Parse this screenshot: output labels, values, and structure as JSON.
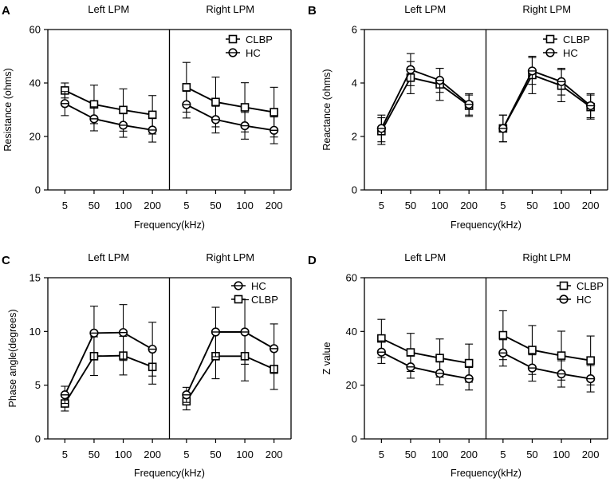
{
  "figure": {
    "type": "multi-panel line chart with error bars",
    "marker_color": "#000000"
  },
  "chart_data": [
    {
      "panel": "A",
      "type": "line",
      "ylabel": "Resistance (ohms)",
      "xlabel": "Frequency(kHz)",
      "ylim": [
        0,
        60
      ],
      "yticks": [
        0,
        20,
        40,
        60
      ],
      "categories": [
        "5",
        "50",
        "100",
        "200"
      ],
      "legend": {
        "position": "top-right",
        "order": [
          "CLBP",
          "HC"
        ]
      },
      "groups": [
        {
          "title": "Left LPM",
          "series": [
            {
              "name": "CLBP",
              "marker": "square",
              "values": [
                37.2,
                32.0,
                29.9,
                28.1
              ],
              "errors": [
                2.8,
                7.2,
                7.9,
                7.2
              ]
            },
            {
              "name": "HC",
              "marker": "circle",
              "values": [
                32.3,
                26.6,
                24.2,
                22.4
              ],
              "errors": [
                4.5,
                4.5,
                4.5,
                4.5
              ]
            }
          ]
        },
        {
          "title": "Right LPM",
          "series": [
            {
              "name": "CLBP",
              "marker": "square",
              "values": [
                38.4,
                32.9,
                30.9,
                29.1
              ],
              "errors": [
                9.3,
                9.3,
                9.2,
                9.3
              ]
            },
            {
              "name": "HC",
              "marker": "circle",
              "values": [
                31.9,
                26.3,
                24.0,
                22.3
              ],
              "errors": [
                5.0,
                5.0,
                5.0,
                5.0
              ]
            }
          ]
        }
      ]
    },
    {
      "panel": "B",
      "type": "line",
      "ylabel": "Reactance (ohms)",
      "xlabel": "Frequency(kHz)",
      "ylim": [
        0,
        6
      ],
      "yticks": [
        0,
        2,
        4,
        6
      ],
      "categories": [
        "5",
        "50",
        "100",
        "200"
      ],
      "legend": {
        "position": "top-right",
        "order": [
          "CLBP",
          "HC"
        ]
      },
      "groups": [
        {
          "title": "Left LPM",
          "series": [
            {
              "name": "CLBP",
              "marker": "square",
              "values": [
                2.2,
                4.2,
                3.95,
                3.15
              ],
              "errors": [
                0.5,
                0.6,
                0.6,
                0.4
              ]
            },
            {
              "name": "HC",
              "marker": "circle",
              "values": [
                2.3,
                4.5,
                4.1,
                3.2
              ],
              "errors": [
                0.5,
                0.6,
                0.45,
                0.4
              ]
            }
          ]
        },
        {
          "title": "Right LPM",
          "series": [
            {
              "name": "CLBP",
              "marker": "square",
              "values": [
                2.3,
                4.3,
                3.9,
                3.1
              ],
              "errors": [
                0.5,
                0.7,
                0.6,
                0.45
              ]
            },
            {
              "name": "HC",
              "marker": "circle",
              "values": [
                2.3,
                4.45,
                4.05,
                3.15
              ],
              "errors": [
                0.5,
                0.5,
                0.5,
                0.45
              ]
            }
          ]
        }
      ]
    },
    {
      "panel": "C",
      "type": "line",
      "ylabel": "Phase angle(degrees)",
      "xlabel": "Frequency(kHz)",
      "ylim": [
        0,
        15
      ],
      "yticks": [
        0,
        5,
        10,
        15
      ],
      "categories": [
        "5",
        "50",
        "100",
        "200"
      ],
      "legend": {
        "position": "top-right",
        "order": [
          "HC",
          "CLBP"
        ]
      },
      "groups": [
        {
          "title": "Left LPM",
          "series": [
            {
              "name": "CLBP",
              "marker": "square",
              "values": [
                3.3,
                7.7,
                7.75,
                6.7
              ],
              "errors": [
                0.7,
                1.8,
                1.8,
                1.6
              ]
            },
            {
              "name": "HC",
              "marker": "circle",
              "values": [
                4.1,
                9.85,
                9.9,
                8.35
              ],
              "errors": [
                0.8,
                2.5,
                2.6,
                2.5
              ]
            }
          ]
        },
        {
          "title": "Right LPM",
          "series": [
            {
              "name": "CLBP",
              "marker": "square",
              "values": [
                3.5,
                7.7,
                7.7,
                6.5
              ],
              "errors": [
                0.8,
                2.1,
                2.3,
                1.9
              ]
            },
            {
              "name": "HC",
              "marker": "circle",
              "values": [
                4.1,
                9.95,
                9.95,
                8.4
              ],
              "errors": [
                0.7,
                2.3,
                3.0,
                2.3
              ]
            }
          ]
        }
      ]
    },
    {
      "panel": "D",
      "type": "line",
      "ylabel": "Z value",
      "xlabel": "Frequency(kHz)",
      "ylim": [
        0,
        60
      ],
      "yticks": [
        0,
        20,
        40,
        60
      ],
      "categories": [
        "5",
        "50",
        "100",
        "200"
      ],
      "legend": {
        "position": "top-right",
        "order": [
          "CLBP",
          "HC"
        ]
      },
      "groups": [
        {
          "title": "Left LPM",
          "series": [
            {
              "name": "CLBP",
              "marker": "square",
              "values": [
                37.4,
                32.2,
                30.1,
                28.2
              ],
              "errors": [
                7.1,
                7.1,
                7.1,
                7.1
              ]
            },
            {
              "name": "HC",
              "marker": "circle",
              "values": [
                32.3,
                26.8,
                24.4,
                22.4
              ],
              "errors": [
                4.2,
                4.2,
                4.2,
                4.2
              ]
            }
          ]
        },
        {
          "title": "Right LPM",
          "series": [
            {
              "name": "CLBP",
              "marker": "square",
              "values": [
                38.6,
                33.1,
                31.0,
                29.2
              ],
              "errors": [
                9.1,
                9.1,
                9.1,
                9.1
              ]
            },
            {
              "name": "HC",
              "marker": "circle",
              "values": [
                32.0,
                26.4,
                24.2,
                22.4
              ],
              "errors": [
                4.9,
                4.9,
                4.9,
                4.9
              ]
            }
          ]
        }
      ]
    }
  ]
}
